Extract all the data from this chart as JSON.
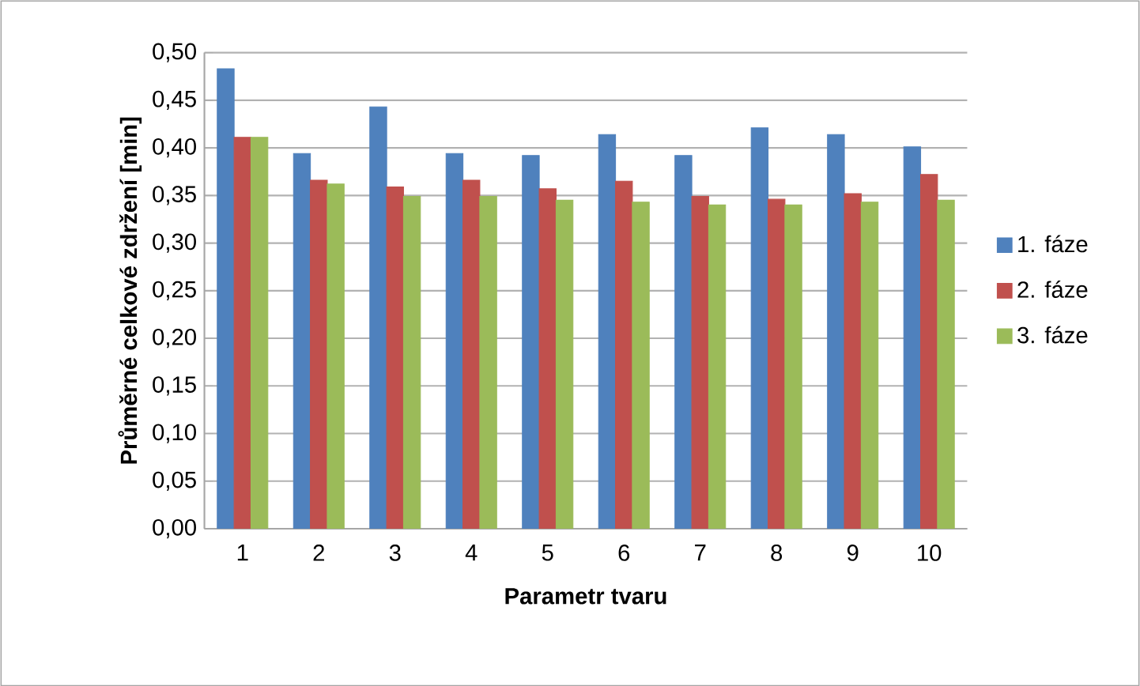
{
  "chart_data": {
    "type": "bar",
    "xlabel": "Parametr tvaru",
    "ylabel": "Průměrné celkové zdržení [min]",
    "categories": [
      "1",
      "2",
      "3",
      "4",
      "5",
      "6",
      "7",
      "8",
      "9",
      "10"
    ],
    "series": [
      {
        "name": "1. fáze",
        "color": "#4f81bd",
        "values": [
          0.483,
          0.394,
          0.443,
          0.394,
          0.392,
          0.414,
          0.392,
          0.421,
          0.414,
          0.401
        ]
      },
      {
        "name": "2. fáze",
        "color": "#c0504d",
        "values": [
          0.411,
          0.366,
          0.359,
          0.366,
          0.357,
          0.365,
          0.349,
          0.346,
          0.352,
          0.372
        ]
      },
      {
        "name": "3. fáze",
        "color": "#9bbb59",
        "values": [
          0.411,
          0.362,
          0.349,
          0.349,
          0.345,
          0.343,
          0.34,
          0.34,
          0.343,
          0.345
        ]
      }
    ],
    "ylim": [
      0,
      0.5
    ],
    "yticks": [
      {
        "value": 0,
        "label": "0,00"
      },
      {
        "value": 0.05,
        "label": "0,05"
      },
      {
        "value": 0.1,
        "label": "0,10"
      },
      {
        "value": 0.15,
        "label": "0,15"
      },
      {
        "value": 0.2,
        "label": "0,20"
      },
      {
        "value": 0.25,
        "label": "0,25"
      },
      {
        "value": 0.3,
        "label": "0,30"
      },
      {
        "value": 0.35,
        "label": "0,35"
      },
      {
        "value": 0.4,
        "label": "0,40"
      },
      {
        "value": 0.45,
        "label": "0,45"
      },
      {
        "value": 0.5,
        "label": "0,50"
      }
    ],
    "grid": "y",
    "legend": "right"
  }
}
